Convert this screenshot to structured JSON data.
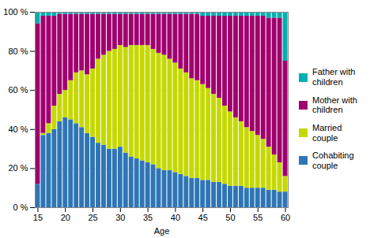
{
  "chart_data": {
    "type": "bar",
    "stacked": true,
    "xlabel": "Age",
    "x": [
      15,
      16,
      17,
      18,
      19,
      20,
      21,
      22,
      23,
      24,
      25,
      26,
      27,
      28,
      29,
      30,
      31,
      32,
      33,
      34,
      35,
      36,
      37,
      38,
      39,
      40,
      41,
      42,
      43,
      44,
      45,
      46,
      47,
      48,
      49,
      50,
      51,
      52,
      53,
      54,
      55,
      56,
      57,
      58,
      59,
      60
    ],
    "series": [
      {
        "name": "Cohabiting\ncouple",
        "color": "#2E75B6",
        "values": [
          12,
          37,
          38,
          40,
          44,
          46,
          45,
          43,
          41,
          38,
          36,
          33,
          32,
          30,
          30,
          31,
          28,
          26,
          25,
          24,
          23,
          22,
          20,
          19,
          19,
          18,
          17,
          16,
          15,
          15,
          14,
          14,
          13,
          13,
          12,
          11,
          11,
          11,
          10,
          10,
          10,
          10,
          9,
          9,
          8,
          8
        ]
      },
      {
        "name": "Married\ncouple",
        "color": "#C5D900",
        "values": [
          0,
          1,
          5,
          12,
          14,
          14,
          20,
          26,
          29,
          30,
          35,
          43,
          46,
          50,
          51,
          52,
          54,
          57,
          58,
          59,
          60,
          59,
          59,
          59,
          57,
          56,
          54,
          53,
          51,
          50,
          49,
          47,
          45,
          43,
          40,
          38,
          35,
          33,
          31,
          29,
          27,
          25,
          22,
          18,
          15,
          8
        ]
      },
      {
        "name": "Mother with\nchildren",
        "color": "#A0006E",
        "values": [
          82,
          60,
          55,
          46,
          41,
          39,
          34,
          30,
          29,
          31,
          28,
          23,
          21,
          19,
          18,
          16,
          17,
          16,
          16,
          16,
          16,
          18,
          20,
          21,
          23,
          25,
          28,
          30,
          33,
          34,
          35,
          37,
          40,
          42,
          46,
          49,
          52,
          54,
          57,
          59,
          61,
          63,
          66,
          70,
          74,
          59
        ]
      },
      {
        "name": "Father with\nchildren",
        "color": "#00B0B0",
        "values": [
          6,
          2,
          2,
          2,
          1,
          1,
          1,
          1,
          1,
          1,
          1,
          1,
          1,
          1,
          1,
          1,
          1,
          1,
          1,
          1,
          1,
          1,
          1,
          1,
          1,
          1,
          1,
          1,
          1,
          1,
          2,
          2,
          2,
          2,
          2,
          2,
          2,
          2,
          2,
          2,
          2,
          2,
          3,
          3,
          3,
          25
        ]
      }
    ],
    "xlim": [
      14.5,
      60.5
    ],
    "xticks": [
      15,
      20,
      25,
      30,
      35,
      40,
      45,
      50,
      55,
      60
    ],
    "ylim": [
      0,
      100
    ],
    "yticks": [
      {
        "value": 0,
        "label": "0 %"
      },
      {
        "value": 20,
        "label": "20 %"
      },
      {
        "value": 40,
        "label": "40 %"
      },
      {
        "value": 60,
        "label": "60 %"
      },
      {
        "value": 80,
        "label": "80 %"
      },
      {
        "value": 100,
        "label": "100 %"
      }
    ],
    "grid": "y",
    "legend": "right"
  }
}
